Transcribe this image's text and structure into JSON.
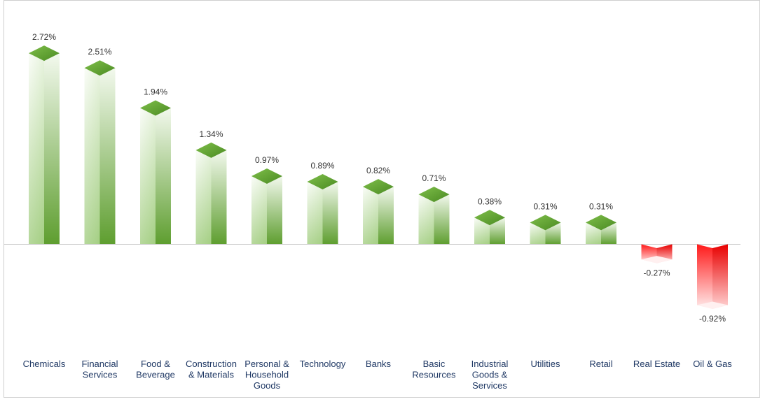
{
  "chart_data": {
    "type": "bar",
    "title": "",
    "xlabel": "",
    "ylabel": "",
    "categories": [
      [
        "Chemicals"
      ],
      [
        "Financial",
        "Services"
      ],
      [
        "Food &",
        "Beverage"
      ],
      [
        "Construction",
        "& Materials"
      ],
      [
        "Personal &",
        "Household",
        "Goods"
      ],
      [
        "Technology"
      ],
      [
        "Banks"
      ],
      [
        "Basic",
        "Resources"
      ],
      [
        "Industrial",
        "Goods &",
        "Services"
      ],
      [
        "Utilities"
      ],
      [
        "Retail"
      ],
      [
        "Real Estate"
      ],
      [
        "Oil & Gas"
      ]
    ],
    "values": [
      2.72,
      2.51,
      1.94,
      1.34,
      0.97,
      0.89,
      0.82,
      0.71,
      0.38,
      0.31,
      0.31,
      -0.27,
      -0.92
    ],
    "value_labels": [
      "2.72%",
      "2.51%",
      "1.94%",
      "1.34%",
      "0.97%",
      "0.89%",
      "0.82%",
      "0.71%",
      "0.38%",
      "0.31%",
      "0.31%",
      "-0.27%",
      "-0.92%"
    ],
    "ylim": [
      -1.0,
      3.0
    ],
    "grid": false,
    "legend": "none",
    "colors": {
      "positive_top": "#5f9e32",
      "positive_front_dark": "#6aaa3a",
      "positive_front_light": "#ffffff",
      "negative_top": "#ffffff",
      "negative_front_dark": "#ff2020",
      "negative_front_light": "#ffffff",
      "axis": "#c8c8c8",
      "category_text": "#1f3864",
      "value_text": "#333333"
    }
  }
}
